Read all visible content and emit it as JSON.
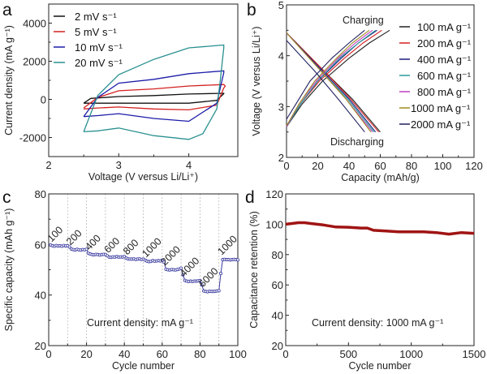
{
  "chart_data": [
    {
      "panel": "a",
      "type": "line",
      "xlabel": "Voltage (V versus Li/Li⁺)",
      "ylabel": "Current density (mA g⁻¹)",
      "xlim": [
        2,
        4.7
      ],
      "ylim": [
        -3000,
        5000
      ],
      "xticks": [
        2,
        3,
        4
      ],
      "yticks": [
        -2000,
        0,
        2000,
        4000
      ],
      "grid": false,
      "legend": "top-left",
      "series": [
        {
          "name": "2 mV s⁻¹",
          "color": "#111111",
          "points": [
            [
              2.5,
              -200
            ],
            [
              2.6,
              50
            ],
            [
              3,
              150
            ],
            [
              3.5,
              200
            ],
            [
              4,
              280
            ],
            [
              4.5,
              320
            ],
            [
              4.5,
              300
            ],
            [
              4.4,
              -50
            ],
            [
              4,
              -200
            ],
            [
              3,
              -200
            ],
            [
              2.5,
              -200
            ]
          ]
        },
        {
          "name": "5 mV s⁻¹",
          "color": "#d42020",
          "points": [
            [
              2.5,
              -450
            ],
            [
              2.7,
              100
            ],
            [
              3,
              450
            ],
            [
              3.5,
              550
            ],
            [
              4,
              700
            ],
            [
              4.5,
              780
            ],
            [
              4.52,
              700
            ],
            [
              4.5,
              600
            ],
            [
              4.4,
              -300
            ],
            [
              4,
              -550
            ],
            [
              3.5,
              -500
            ],
            [
              3,
              -400
            ],
            [
              2.7,
              -450
            ],
            [
              2.5,
              -500
            ]
          ]
        },
        {
          "name": "10 mV s⁻¹",
          "color": "#1c1ca8",
          "points": [
            [
              2.5,
              -900
            ],
            [
              2.7,
              100
            ],
            [
              3,
              850
            ],
            [
              3.5,
              1050
            ],
            [
              4,
              1350
            ],
            [
              4.5,
              1500
            ],
            [
              4.5,
              1400
            ],
            [
              4.4,
              -200
            ],
            [
              4,
              -1150
            ],
            [
              3.5,
              -1000
            ],
            [
              3,
              -750
            ],
            [
              2.7,
              -850
            ],
            [
              2.5,
              -900
            ]
          ]
        },
        {
          "name": "20 mV s⁻¹",
          "color": "#2a9090",
          "points": [
            [
              2.5,
              -1700
            ],
            [
              2.7,
              200
            ],
            [
              3,
              1300
            ],
            [
              3.5,
              2100
            ],
            [
              4,
              2700
            ],
            [
              4.5,
              2850
            ],
            [
              4.5,
              2700
            ],
            [
              4.45,
              1000
            ],
            [
              4.4,
              -500
            ],
            [
              4.2,
              -1800
            ],
            [
              4,
              -2100
            ],
            [
              3.5,
              -1900
            ],
            [
              3,
              -1500
            ],
            [
              2.7,
              -1650
            ],
            [
              2.5,
              -1700
            ]
          ]
        }
      ]
    },
    {
      "panel": "b",
      "type": "line",
      "xlabel": "Capacity (mAh/g)",
      "ylabel": "Voltage (V versus Li/Li⁺)",
      "xlim": [
        0,
        120
      ],
      "ylim": [
        2,
        5
      ],
      "xticks": [
        0,
        20,
        40,
        60,
        80,
        100,
        120
      ],
      "yticks": [
        2,
        3,
        4,
        5
      ],
      "grid": false,
      "legend": "top-right",
      "annotations": [
        "Charging",
        "Discharging"
      ],
      "series": [
        {
          "name": "100 mA g⁻¹",
          "color": "#222222",
          "charge": [
            [
              0,
              2.6
            ],
            [
              10,
              3.05
            ],
            [
              23,
              3.5
            ],
            [
              40,
              3.95
            ],
            [
              53,
              4.25
            ],
            [
              66,
              4.5
            ]
          ],
          "discharge": [
            [
              0,
              4.45
            ],
            [
              24,
              3.7
            ],
            [
              42,
              3.15
            ],
            [
              60,
              2.5
            ]
          ]
        },
        {
          "name": "200 mA g⁻¹",
          "color": "#d42020",
          "charge": [
            [
              0,
              2.6
            ],
            [
              9,
              3.05
            ],
            [
              21,
              3.5
            ],
            [
              37,
              3.95
            ],
            [
              49,
              4.25
            ],
            [
              61,
              4.5
            ]
          ],
          "discharge": [
            [
              0,
              4.45
            ],
            [
              24,
              3.7
            ],
            [
              41,
              3.15
            ],
            [
              59,
              2.5
            ]
          ]
        },
        {
          "name": "400 mA g⁻¹",
          "color": "#1c1c80",
          "charge": [
            [
              0,
              2.6
            ],
            [
              9,
              3.05
            ],
            [
              20,
              3.5
            ],
            [
              35,
              3.95
            ],
            [
              46,
              4.25
            ],
            [
              58,
              4.5
            ]
          ],
          "discharge": [
            [
              0,
              4.45
            ],
            [
              23,
              3.7
            ],
            [
              40,
              3.15
            ],
            [
              57,
              2.5
            ]
          ]
        },
        {
          "name": "600 mA g⁻¹",
          "color": "#2a9a9a",
          "charge": [
            [
              0,
              2.6
            ],
            [
              9,
              3.05
            ],
            [
              20,
              3.5
            ],
            [
              34,
              3.95
            ],
            [
              46,
              4.25
            ],
            [
              57,
              4.5
            ]
          ],
          "discharge": [
            [
              0,
              4.45
            ],
            [
              22,
              3.7
            ],
            [
              39,
              3.15
            ],
            [
              56,
              2.5
            ]
          ]
        },
        {
          "name": "800 mA g⁻¹",
          "color": "#c040c0",
          "charge": [
            [
              0,
              2.6
            ],
            [
              8,
              3.05
            ],
            [
              19,
              3.5
            ],
            [
              33,
              3.95
            ],
            [
              44,
              4.25
            ],
            [
              55,
              4.5
            ]
          ],
          "discharge": [
            [
              0,
              4.45
            ],
            [
              22,
              3.7
            ],
            [
              38,
              3.15
            ],
            [
              55,
              2.5
            ]
          ]
        },
        {
          "name": "1000 mA g⁻¹",
          "color": "#a08a20",
          "charge": [
            [
              0,
              2.62
            ],
            [
              8,
              3.05
            ],
            [
              18,
              3.5
            ],
            [
              32,
              3.95
            ],
            [
              42,
              4.25
            ],
            [
              53,
              4.5
            ]
          ],
          "discharge": [
            [
              0,
              4.45
            ],
            [
              22,
              3.7
            ],
            [
              38,
              3.15
            ],
            [
              54,
              2.5
            ]
          ]
        },
        {
          "name": "2000 mA g⁻¹",
          "color": "#202060",
          "charge": [
            [
              0,
              2.75
            ],
            [
              6,
              3.05
            ],
            [
              15,
              3.5
            ],
            [
              29,
              3.95
            ],
            [
              40,
              4.25
            ],
            [
              50,
              4.5
            ]
          ],
          "discharge": [
            [
              0,
              4.3
            ],
            [
              18,
              3.7
            ],
            [
              33,
              3.15
            ],
            [
              50,
              2.5
            ]
          ]
        }
      ]
    },
    {
      "panel": "c",
      "type": "scatter",
      "xlabel": "Cycle number",
      "ylabel": "Specific capacity (mAh g⁻¹)",
      "xlim": [
        0,
        100
      ],
      "ylim": [
        20,
        80
      ],
      "xticks": [
        0,
        20,
        40,
        60,
        80,
        100
      ],
      "yticks": [
        20,
        40,
        60,
        80
      ],
      "grid": true,
      "color": "#3a3aa0",
      "annotation": "Current density: mA g⁻¹",
      "segments": [
        {
          "label": "100",
          "values": [
            59.8,
            59.5,
            59.3,
            59.6,
            59.4,
            59.5,
            59.3,
            59.6,
            59.4,
            59.5
          ]
        },
        {
          "label": "200",
          "values": [
            59,
            58.2,
            58,
            57.8,
            58.1,
            57.9,
            57.8,
            58,
            57.9,
            58.1
          ]
        },
        {
          "label": "400",
          "values": [
            56.5,
            56.2,
            56,
            55.9,
            56.1,
            56,
            55.8,
            56,
            56.1,
            56
          ]
        },
        {
          "label": "600",
          "values": [
            55.5,
            55,
            54.9,
            55.1,
            55,
            55.2,
            55,
            55.1,
            55,
            55.2
          ]
        },
        {
          "label": "800",
          "values": [
            54.6,
            54.3,
            54.2,
            54.2,
            54.3,
            54.1,
            54.2,
            54.3,
            54.1,
            54.2
          ]
        },
        {
          "label": "1000",
          "values": [
            53.8,
            53.4,
            53.2,
            53.3,
            53.6,
            53.4,
            53.5,
            53.6,
            53.5,
            53.8
          ]
        },
        {
          "label": "2000",
          "values": [
            53,
            50.2,
            50,
            49.9,
            50.1,
            50,
            49.9,
            50.1,
            50.3,
            50.6
          ]
        },
        {
          "label": "4000",
          "values": [
            48,
            45.8,
            45.5,
            45.4,
            45.5,
            45.4,
            45.5,
            45.5,
            45.6,
            45.7
          ]
        },
        {
          "label": "6000",
          "values": [
            44,
            41.6,
            41.4,
            41.3,
            41.5,
            41.4,
            41.4,
            41.5,
            41.6,
            41.7
          ]
        },
        {
          "label": "1000",
          "values": [
            48.5,
            54,
            54.1,
            54,
            54,
            53.9,
            54,
            54.1,
            54,
            53.9
          ]
        }
      ]
    },
    {
      "panel": "d",
      "type": "line",
      "xlabel": "Cycle number",
      "ylabel": "Capacitance retention (%)",
      "xlim": [
        0,
        1500
      ],
      "ylim": [
        20,
        120
      ],
      "xticks": [
        0,
        500,
        1000,
        1500
      ],
      "yticks": [
        20,
        40,
        60,
        80,
        100,
        120
      ],
      "grid": false,
      "color": "#a01414",
      "annotation": "Current density: 1000 mA g⁻¹",
      "points": [
        [
          0,
          100
        ],
        [
          50,
          100.5
        ],
        [
          100,
          101
        ],
        [
          150,
          101
        ],
        [
          200,
          100.5
        ],
        [
          300,
          99.5
        ],
        [
          400,
          98.2
        ],
        [
          500,
          98
        ],
        [
          600,
          97.5
        ],
        [
          650,
          97.5
        ],
        [
          700,
          96
        ],
        [
          800,
          95.5
        ],
        [
          900,
          95
        ],
        [
          1000,
          95
        ],
        [
          1100,
          95
        ],
        [
          1200,
          94.5
        ],
        [
          1300,
          93.5
        ],
        [
          1400,
          94.5
        ],
        [
          1500,
          94
        ]
      ]
    }
  ],
  "panel_letters": [
    "a",
    "b",
    "c",
    "d"
  ]
}
